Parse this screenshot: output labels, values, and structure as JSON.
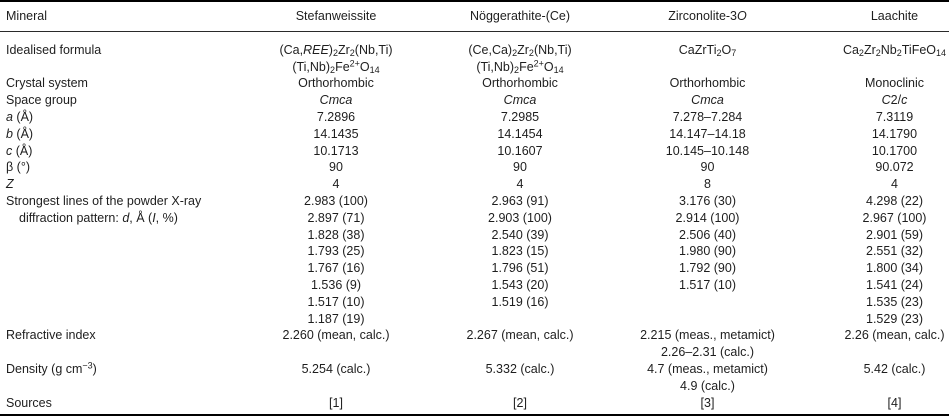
{
  "colors": {
    "background": "#ffffff",
    "text": "#1e1e1e",
    "heavy_rule": "#000000",
    "thin_rule": "#2a2a2a"
  },
  "table": {
    "header": {
      "label_col": "Mineral",
      "minerals": [
        "Stefanweissite",
        "Nöggerathite-(Ce)",
        "Zirconolite-3<i>O</i>",
        "Laachite"
      ]
    },
    "rows": [
      {
        "label": "Idealised formula",
        "values": [
          "(Ca,<i>REE</i>)<sub>2</sub>Zr<sub>2</sub>(Nb,Ti)<br>(Ti,Nb)<sub>2</sub>Fe<sup>2+</sup>O<sub>14</sub>",
          "(Ce,Ca)<sub>2</sub>Zr<sub>2</sub>(Nb,Ti)<br>(Ti,Nb)<sub>2</sub>Fe<sup>2+</sup>O<sub>14</sub>",
          "CaZrTi<sub>2</sub>O<sub>7</sub>",
          "Ca<sub>2</sub>Zr<sub>2</sub>Nb<sub>2</sub>TiFeO<sub>14</sub>"
        ]
      },
      {
        "label": "Crystal system",
        "values": [
          "Orthorhombic",
          "Orthorhombic",
          "Orthorhombic",
          "Monoclinic"
        ]
      },
      {
        "label": "Space group",
        "values": [
          "<i>Cmca</i>",
          "<i>Cmca</i>",
          "<i>Cmca</i>",
          "<i>C</i>2/<i>c</i>"
        ]
      },
      {
        "label": "<i>a</i> (Å)",
        "values": [
          "7.2896",
          "7.2985",
          "7.278–7.284",
          "7.3119"
        ]
      },
      {
        "label": "<i>b</i> (Å)",
        "values": [
          "14.1435",
          "14.1454",
          "14.147–14.18",
          "14.1790"
        ]
      },
      {
        "label": "<i>c</i> (Å)",
        "values": [
          "10.1713",
          "10.1607",
          "10.145–10.148",
          "10.1700"
        ]
      },
      {
        "label": "β (°)",
        "values": [
          "90",
          "90",
          "90",
          "90.072"
        ]
      },
      {
        "label": "<i>Z</i>",
        "values": [
          "4",
          "4",
          "8",
          "4"
        ]
      },
      {
        "label_lines": [
          "Strongest lines of the powder X-ray",
          "diffraction pattern: <i>d</i>, Å (<i>I</i>, %)"
        ],
        "values": [
          [
            "2.983 (100)",
            "2.897 (71)",
            "1.828 (38)",
            "1.793 (25)",
            "1.767 (16)",
            "1.536 (9)",
            "1.517 (10)",
            "1.187 (19)"
          ],
          [
            "2.963 (91)",
            "2.903 (100)",
            "2.540 (39)",
            "1.823 (15)",
            "1.796 (51)",
            "1.543 (20)",
            "1.519 (16)"
          ],
          [
            "3.176 (30)",
            "2.914 (100)",
            "2.506 (40)",
            "1.980 (90)",
            "1.792 (90)",
            "1.517 (10)"
          ],
          [
            "4.298 (22)",
            "2.967 (100)",
            "2.901 (59)",
            "2.551 (32)",
            "1.800 (34)",
            "1.541 (24)",
            "1.535 (23)",
            "1.529 (23)"
          ]
        ]
      },
      {
        "label": "Refractive index",
        "values": [
          "2.260 (mean, calc.)",
          "2.267 (mean, calc.)",
          [
            "2.215 (meas., metamict)",
            "2.26–2.31 (calc.)"
          ],
          "2.26 (mean, calc.)"
        ]
      },
      {
        "label": "Density (g cm<sup>−3</sup>)",
        "values": [
          "5.254 (calc.)",
          "5.332 (calc.)",
          [
            "4.7 (meas., metamict)",
            "4.9 (calc.)"
          ],
          "5.42 (calc.)"
        ]
      },
      {
        "label": "Sources",
        "values": [
          "[1]",
          "[2]",
          "[3]",
          "[4]"
        ]
      }
    ]
  }
}
